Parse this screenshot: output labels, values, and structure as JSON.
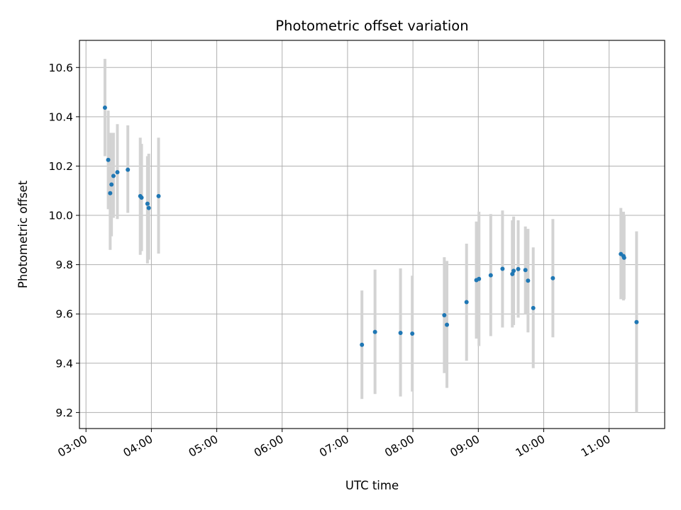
{
  "chart_data": {
    "type": "scatter",
    "title": "Photometric offset variation",
    "xlabel": "UTC time",
    "ylabel": "Photometric offset",
    "x_unit": "hours UTC",
    "xlim": [
      2.9,
      11.85
    ],
    "ylim": [
      9.135,
      10.71
    ],
    "xticks": [
      3,
      4,
      5,
      6,
      7,
      8,
      9,
      10,
      11
    ],
    "xtick_labels": [
      "03:00",
      "04:00",
      "05:00",
      "06:00",
      "07:00",
      "08:00",
      "09:00",
      "10:00",
      "11:00"
    ],
    "yticks": [
      9.2,
      9.4,
      9.6,
      9.8,
      10.0,
      10.2,
      10.4,
      10.6
    ],
    "ytick_labels": [
      "9.2",
      "9.4",
      "9.6",
      "9.8",
      "10.0",
      "10.2",
      "10.4",
      "10.6"
    ],
    "grid": true,
    "colors": {
      "point": "#1f77b4",
      "errorbar": "#d3d3d3",
      "grid": "#b0b0b0"
    },
    "points": [
      {
        "x": 3.29,
        "y": 10.437,
        "lo": 10.24,
        "hi": 10.635
      },
      {
        "x": 3.34,
        "y": 10.225,
        "lo": 10.025,
        "hi": 10.425
      },
      {
        "x": 3.37,
        "y": 10.09,
        "lo": 9.86,
        "hi": 10.335
      },
      {
        "x": 3.39,
        "y": 10.125,
        "lo": 9.915,
        "hi": 10.335
      },
      {
        "x": 3.42,
        "y": 10.16,
        "lo": 9.99,
        "hi": 10.335
      },
      {
        "x": 3.48,
        "y": 10.175,
        "lo": 9.985,
        "hi": 10.37
      },
      {
        "x": 3.64,
        "y": 10.185,
        "lo": 10.01,
        "hi": 10.365
      },
      {
        "x": 3.83,
        "y": 10.078,
        "lo": 9.84,
        "hi": 10.315
      },
      {
        "x": 3.85,
        "y": 10.072,
        "lo": 9.855,
        "hi": 10.29
      },
      {
        "x": 3.94,
        "y": 10.047,
        "lo": 9.805,
        "hi": 10.24
      },
      {
        "x": 3.96,
        "y": 10.03,
        "lo": 9.82,
        "hi": 10.25
      },
      {
        "x": 4.11,
        "y": 10.078,
        "lo": 9.845,
        "hi": 10.315
      },
      {
        "x": 7.22,
        "y": 9.475,
        "lo": 9.255,
        "hi": 9.695
      },
      {
        "x": 7.42,
        "y": 9.527,
        "lo": 9.275,
        "hi": 9.78
      },
      {
        "x": 7.81,
        "y": 9.523,
        "lo": 9.265,
        "hi": 9.785
      },
      {
        "x": 7.99,
        "y": 9.52,
        "lo": 9.285,
        "hi": 9.755
      },
      {
        "x": 8.48,
        "y": 9.595,
        "lo": 9.36,
        "hi": 9.83
      },
      {
        "x": 8.52,
        "y": 9.556,
        "lo": 9.3,
        "hi": 9.815
      },
      {
        "x": 8.82,
        "y": 9.648,
        "lo": 9.41,
        "hi": 9.885
      },
      {
        "x": 8.97,
        "y": 9.737,
        "lo": 9.5,
        "hi": 9.975
      },
      {
        "x": 9.01,
        "y": 9.742,
        "lo": 9.47,
        "hi": 10.015
      },
      {
        "x": 9.19,
        "y": 9.757,
        "lo": 9.51,
        "hi": 10.005
      },
      {
        "x": 9.37,
        "y": 9.783,
        "lo": 9.545,
        "hi": 10.02
      },
      {
        "x": 9.52,
        "y": 9.762,
        "lo": 9.545,
        "hi": 9.98
      },
      {
        "x": 9.54,
        "y": 9.775,
        "lo": 9.555,
        "hi": 9.995
      },
      {
        "x": 9.61,
        "y": 9.782,
        "lo": 9.585,
        "hi": 9.98
      },
      {
        "x": 9.72,
        "y": 9.778,
        "lo": 9.6,
        "hi": 9.955
      },
      {
        "x": 9.76,
        "y": 9.735,
        "lo": 9.525,
        "hi": 9.945
      },
      {
        "x": 9.84,
        "y": 9.624,
        "lo": 9.38,
        "hi": 9.87
      },
      {
        "x": 10.14,
        "y": 9.745,
        "lo": 9.505,
        "hi": 9.985
      },
      {
        "x": 11.18,
        "y": 9.843,
        "lo": 9.66,
        "hi": 10.03
      },
      {
        "x": 11.22,
        "y": 9.835,
        "lo": 9.655,
        "hi": 10.015
      },
      {
        "x": 11.23,
        "y": 9.828,
        "lo": 9.66,
        "hi": 10.0
      },
      {
        "x": 11.42,
        "y": 9.567,
        "lo": 9.2,
        "hi": 9.935
      }
    ]
  }
}
